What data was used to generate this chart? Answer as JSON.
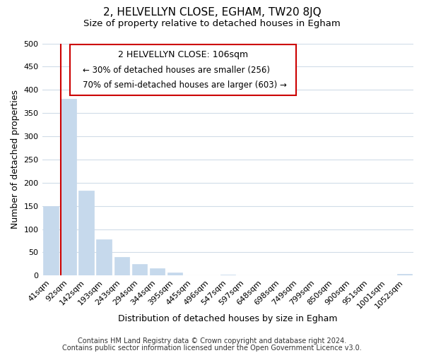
{
  "title": "2, HELVELLYN CLOSE, EGHAM, TW20 8JQ",
  "subtitle": "Size of property relative to detached houses in Egham",
  "xlabel": "Distribution of detached houses by size in Egham",
  "ylabel": "Number of detached properties",
  "bar_labels": [
    "41sqm",
    "92sqm",
    "142sqm",
    "193sqm",
    "243sqm",
    "294sqm",
    "344sqm",
    "395sqm",
    "445sqm",
    "496sqm",
    "547sqm",
    "597sqm",
    "648sqm",
    "698sqm",
    "749sqm",
    "799sqm",
    "850sqm",
    "900sqm",
    "951sqm",
    "1001sqm",
    "1052sqm"
  ],
  "bar_values": [
    150,
    380,
    183,
    78,
    40,
    25,
    16,
    7,
    0,
    0,
    2,
    0,
    0,
    0,
    0,
    0,
    0,
    0,
    0,
    0,
    3
  ],
  "bar_color": "#c6d9ec",
  "bar_edge_color": "#c6d9ec",
  "marker_line_color": "#cc0000",
  "ylim": [
    0,
    500
  ],
  "yticks": [
    0,
    50,
    100,
    150,
    200,
    250,
    300,
    350,
    400,
    450,
    500
  ],
  "annotation_title": "2 HELVELLYN CLOSE: 106sqm",
  "annotation_line1": "← 30% of detached houses are smaller (256)",
  "annotation_line2": "70% of semi-detached houses are larger (603) →",
  "annotation_box_color": "#ffffff",
  "annotation_box_edge": "#cc0000",
  "footer1": "Contains HM Land Registry data © Crown copyright and database right 2024.",
  "footer2": "Contains public sector information licensed under the Open Government Licence v3.0.",
  "background_color": "#ffffff",
  "grid_color": "#d0dce8",
  "title_fontsize": 11,
  "subtitle_fontsize": 9.5,
  "axis_label_fontsize": 9,
  "tick_fontsize": 8,
  "annotation_title_fontsize": 9,
  "annotation_text_fontsize": 8.5,
  "footer_fontsize": 7
}
